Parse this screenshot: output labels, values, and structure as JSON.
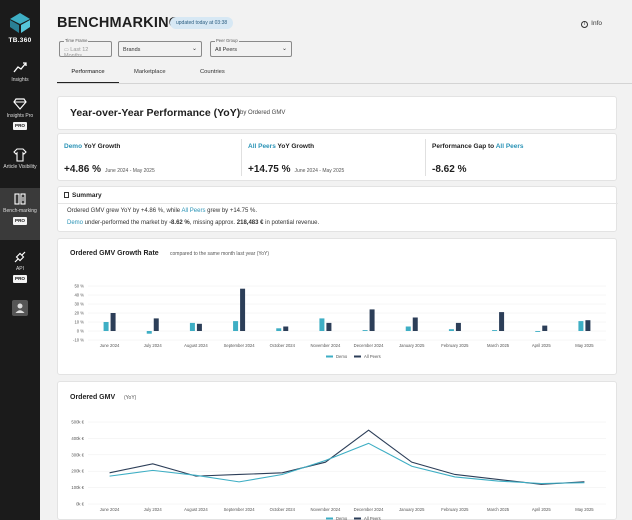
{
  "sidebar": {
    "logo_text": "TB.360",
    "items": [
      {
        "label": "Insights",
        "pro": ""
      },
      {
        "label": "Insights Pro",
        "pro": "PRO"
      },
      {
        "label": "Article Visibility",
        "pro": ""
      },
      {
        "label": "Bench-marking",
        "pro": "PRO"
      },
      {
        "label": "API",
        "pro": "PRO"
      }
    ]
  },
  "header": {
    "title": "BENCHMARKING",
    "updated": "updated today at 03:38",
    "info": "Info"
  },
  "filters": {
    "time_frame": {
      "label": "Time Frame",
      "placeholder": "Last 12 Months"
    },
    "brands": {
      "value": "Brands"
    },
    "peer_group": {
      "label": "Peer Group",
      "value": "All Peers"
    }
  },
  "tabs": [
    "Performance",
    "Marketplace",
    "Countries"
  ],
  "yoy": {
    "title": "Year-over-Year Performance (YoY)",
    "subtitle": "by Ordered GMV"
  },
  "kpis": [
    {
      "title_a": "Demo",
      "title_b": " YoY Growth",
      "value": "+4.86 %",
      "range": "June 2024 - May 2025"
    },
    {
      "title_a": "All Peers",
      "title_b": " YoY Growth",
      "value": "+14.75 %",
      "range": "June 2024 - May 2025"
    },
    {
      "title_a": "Performance Gap to ",
      "title_b": "All Peers",
      "value": "-8.62 %",
      "range": ""
    }
  ],
  "summary": {
    "title": "Summary",
    "line1": {
      "p1": "Ordered GMV grew YoY by +4.86 %, while ",
      "peers": "All Peers",
      "p2": " grew by +14.75 %."
    },
    "line2": {
      "brand": "Demo",
      "p1": " under-performed the market by ",
      "gap": "-8.62 %",
      "p2": ", missing approx. ",
      "amount": "218,483 €",
      "p3": " in potential revenue."
    }
  },
  "chart1": {
    "title": "Ordered GMV Growth Rate",
    "subtitle": "compared to the same month last year (YoY)"
  },
  "chart2": {
    "title": "Ordered GMV",
    "subtitle": "(YoY)"
  },
  "colors": {
    "demo": "#3eaec4",
    "peers": "#2c3e58"
  },
  "chart_data": [
    {
      "type": "bar",
      "title": "Ordered GMV Growth Rate",
      "categories": [
        "June 2024",
        "July 2024",
        "August 2024",
        "September 2024",
        "October 2024",
        "November 2024",
        "December 2024",
        "January 2025",
        "February 2025",
        "March 2025",
        "April 2025",
        "May 2025"
      ],
      "series": [
        {
          "name": "Demo",
          "values": [
            10,
            -3,
            9,
            11,
            3,
            14,
            1,
            5,
            2,
            1,
            -1,
            11
          ]
        },
        {
          "name": "All Peers",
          "values": [
            20,
            14,
            8,
            47,
            5,
            9,
            24,
            15,
            9,
            21,
            6,
            12
          ]
        }
      ],
      "yticks": [
        "50 %",
        "40 %",
        "30 %",
        "20 %",
        "10 %",
        "0 %",
        "-10 %"
      ],
      "ylim": [
        -10,
        50
      ],
      "legend": "bottom"
    },
    {
      "type": "line",
      "title": "Ordered GMV",
      "categories": [
        "June 2024",
        "July 2024",
        "August 2024",
        "September 2024",
        "October 2024",
        "November 2024",
        "December 2024",
        "January 2025",
        "February 2025",
        "March 2025",
        "April 2025",
        "May 2025"
      ],
      "series": [
        {
          "name": "Demo",
          "values": [
            170000,
            205000,
            175000,
            135000,
            180000,
            265000,
            370000,
            230000,
            165000,
            140000,
            125000,
            130000
          ]
        },
        {
          "name": "All Peers",
          "values": [
            190000,
            245000,
            170000,
            180000,
            190000,
            255000,
            450000,
            255000,
            180000,
            150000,
            120000,
            135000
          ]
        }
      ],
      "yticks": [
        "500k €",
        "400k €",
        "300k €",
        "200k €",
        "100k €",
        "0k €"
      ],
      "ylim": [
        0,
        500000
      ],
      "legend": "bottom"
    }
  ]
}
